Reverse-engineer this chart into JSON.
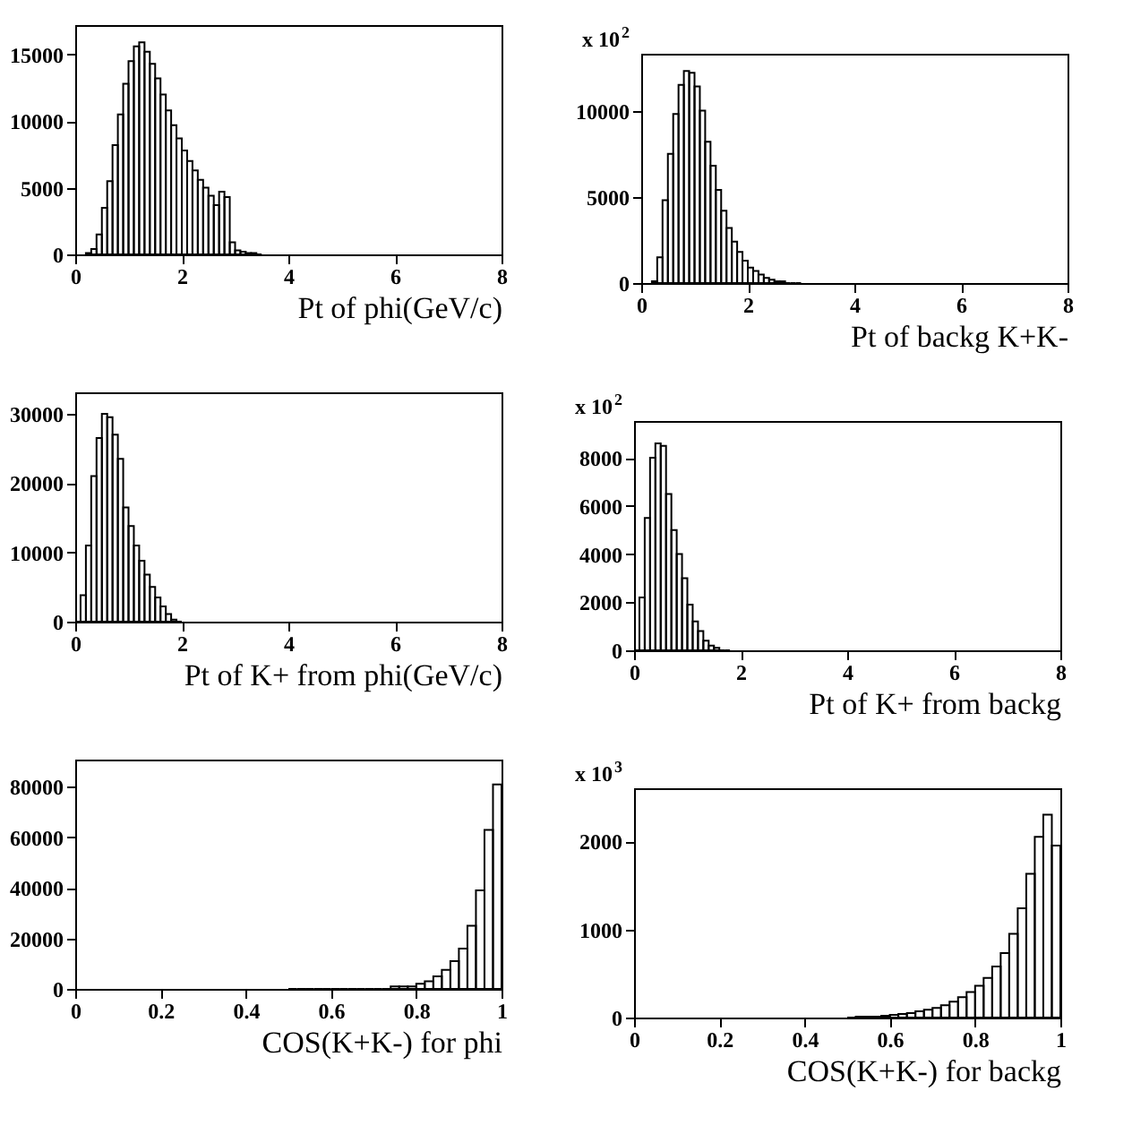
{
  "chart_data": [
    {
      "type": "histogram",
      "xlabel": "Pt of phi(GeV/c)",
      "color": "#000000",
      "xlim": [
        0,
        8
      ],
      "xticks": [
        0,
        2,
        4,
        6,
        8
      ],
      "ylim": [
        0,
        17200
      ],
      "yticks": [
        0,
        5000,
        10000,
        15000
      ],
      "bins": [
        0.2,
        0.3,
        0.4,
        0.5,
        0.6,
        0.7,
        0.8,
        0.9,
        1.0,
        1.1,
        1.2,
        1.3,
        1.4,
        1.5,
        1.6,
        1.7,
        1.8,
        1.9,
        2.0,
        2.1,
        2.2,
        2.3,
        2.4,
        2.5,
        2.6,
        2.7,
        2.8,
        2.9,
        3.0,
        3.1,
        3.2,
        3.3,
        3.4,
        3.5
      ],
      "values": [
        100,
        400,
        1500,
        3500,
        5500,
        8200,
        10500,
        12800,
        14500,
        15600,
        15900,
        15200,
        14300,
        13200,
        12000,
        10800,
        9700,
        8700,
        7800,
        7000,
        6300,
        5600,
        5000,
        4400,
        3700,
        4700,
        4300,
        900,
        300,
        200,
        100,
        100,
        0
      ]
    },
    {
      "type": "histogram",
      "xlabel": "Pt of backg K+K-",
      "color": "#000000",
      "xlim": [
        0,
        8
      ],
      "xticks": [
        0,
        2,
        4,
        6,
        8
      ],
      "ylim": [
        0,
        13300
      ],
      "yticks": [
        0,
        5000,
        10000
      ],
      "annotations": [
        "x 10$^{2}$"
      ],
      "bins": [
        0.2,
        0.3,
        0.4,
        0.5,
        0.6,
        0.7,
        0.8,
        0.9,
        1.0,
        1.1,
        1.2,
        1.3,
        1.4,
        1.5,
        1.6,
        1.7,
        1.8,
        1.9,
        2.0,
        2.1,
        2.2,
        2.3,
        2.4,
        2.5,
        2.6,
        2.7,
        2.8,
        2.9,
        3.0
      ],
      "values": [
        100,
        1500,
        4800,
        7500,
        9800,
        11500,
        12300,
        12200,
        11400,
        10000,
        8200,
        6800,
        5400,
        4200,
        3200,
        2400,
        1800,
        1300,
        900,
        700,
        500,
        300,
        200,
        100,
        100,
        0,
        0,
        0
      ]
    },
    {
      "type": "histogram",
      "xlabel": "Pt of K+ from phi(GeV/c)",
      "color": "#000000",
      "xlim": [
        0,
        8
      ],
      "xticks": [
        0,
        2,
        4,
        6,
        8
      ],
      "ylim": [
        0,
        33100
      ],
      "yticks": [
        0,
        10000,
        20000,
        30000
      ],
      "bins": [
        0,
        0.1,
        0.2,
        0.3,
        0.4,
        0.5,
        0.6,
        0.7,
        0.8,
        0.9,
        1.0,
        1.1,
        1.2,
        1.3,
        1.4,
        1.5,
        1.6,
        1.7,
        1.8,
        1.9,
        2.0
      ],
      "values": [
        0,
        3800,
        11000,
        21000,
        26500,
        30000,
        29500,
        27000,
        23500,
        16500,
        13800,
        11000,
        8800,
        6800,
        5000,
        3500,
        2200,
        1100,
        300,
        0
      ]
    },
    {
      "type": "histogram",
      "xlabel": "Pt of K+ from backg",
      "color": "#000000",
      "xlim": [
        0,
        8
      ],
      "xticks": [
        0,
        2,
        4,
        6,
        8
      ],
      "ylim": [
        0,
        9530
      ],
      "yticks": [
        0,
        2000,
        4000,
        6000,
        8000
      ],
      "annotations": [
        "x 10$^{2}$"
      ],
      "bins": [
        0,
        0.1,
        0.2,
        0.3,
        0.4,
        0.5,
        0.6,
        0.7,
        0.8,
        0.9,
        1.0,
        1.1,
        1.2,
        1.3,
        1.4,
        1.5,
        1.6,
        1.7,
        1.8
      ],
      "values": [
        0,
        2200,
        5500,
        8000,
        8600,
        8500,
        6500,
        5000,
        4000,
        3000,
        1900,
        1200,
        800,
        400,
        200,
        100,
        0,
        0
      ]
    },
    {
      "type": "histogram",
      "xlabel": "COS(K+K-) for phi",
      "color": "#000000",
      "xlim": [
        0,
        1
      ],
      "xticks": [
        0,
        0.2,
        0.4,
        0.6,
        0.8,
        1
      ],
      "ylim": [
        0,
        90800
      ],
      "yticks": [
        0,
        20000,
        40000,
        60000,
        80000
      ],
      "bins": [
        0.5,
        0.52,
        0.54,
        0.56,
        0.58,
        0.6,
        0.62,
        0.64,
        0.66,
        0.68,
        0.7,
        0.72,
        0.74,
        0.76,
        0.78,
        0.8,
        0.82,
        0.84,
        0.86,
        0.88,
        0.9,
        0.92,
        0.94,
        0.96,
        0.98,
        1.0
      ],
      "values": [
        0,
        0,
        0,
        0,
        0,
        0,
        0,
        0,
        0,
        0,
        0,
        0,
        1000,
        1000,
        1000,
        2000,
        3000,
        5000,
        7500,
        11000,
        16000,
        25000,
        39000,
        63000,
        81000
      ]
    },
    {
      "type": "histogram",
      "xlabel": "COS(K+K-) for backg",
      "color": "#000000",
      "xlim": [
        0,
        1
      ],
      "xticks": [
        0,
        0.2,
        0.4,
        0.6,
        0.8,
        1
      ],
      "ylim": [
        0,
        2600
      ],
      "yticks": [
        0,
        1000,
        2000
      ],
      "annotations": [
        "x 10$^{3}$"
      ],
      "bins": [
        0.5,
        0.52,
        0.54,
        0.56,
        0.58,
        0.6,
        0.62,
        0.64,
        0.66,
        0.68,
        0.7,
        0.72,
        0.74,
        0.76,
        0.78,
        0.8,
        0.82,
        0.84,
        0.86,
        0.88,
        0.9,
        0.92,
        0.94,
        0.96,
        0.98,
        1.0
      ],
      "values": [
        0,
        10,
        10,
        10,
        20,
        30,
        40,
        50,
        70,
        90,
        110,
        140,
        180,
        230,
        290,
        360,
        450,
        580,
        730,
        950,
        1240,
        1630,
        2050,
        2300,
        1950
      ]
    }
  ]
}
